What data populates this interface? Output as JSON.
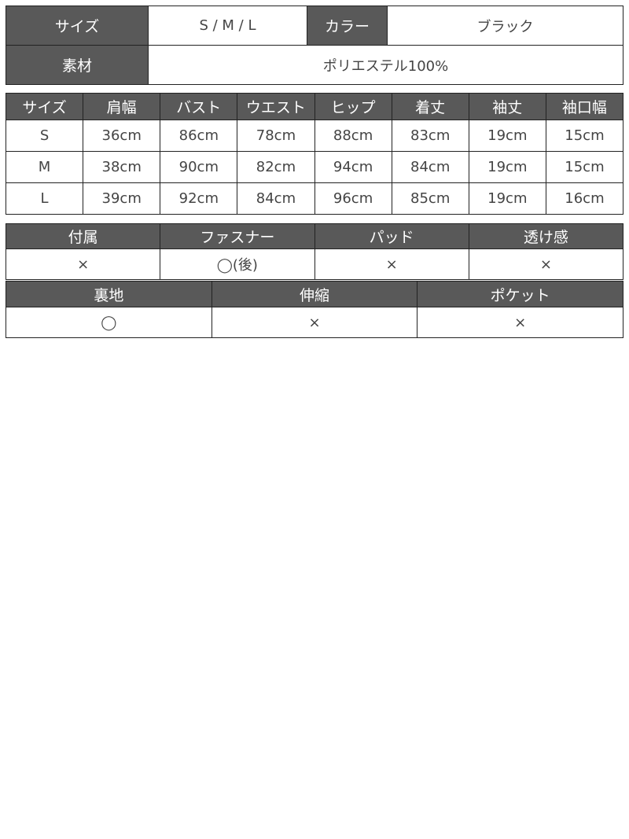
{
  "basic": {
    "size_label": "サイズ",
    "size_value": "S / M / L",
    "color_label": "カラー",
    "color_value": "ブラック",
    "material_label": "素材",
    "material_value": "ポリエステル100%"
  },
  "size_table": {
    "headers": [
      "サイズ",
      "肩幅",
      "バスト",
      "ウエスト",
      "ヒップ",
      "着丈",
      "袖丈",
      "袖口幅"
    ],
    "rows": [
      [
        "S",
        "36cm",
        "86cm",
        "78cm",
        "88cm",
        "83cm",
        "19cm",
        "15cm"
      ],
      [
        "M",
        "38cm",
        "90cm",
        "82cm",
        "94cm",
        "84cm",
        "19cm",
        "15cm"
      ],
      [
        "L",
        "39cm",
        "92cm",
        "84cm",
        "96cm",
        "85cm",
        "19cm",
        "16cm"
      ]
    ]
  },
  "features1": {
    "headers": [
      "付属",
      "ファスナー",
      "パッド",
      "透け感"
    ],
    "values": [
      "×",
      "◯(後)",
      "×",
      "×"
    ]
  },
  "features2": {
    "headers": [
      "裏地",
      "伸縮",
      "ポケット"
    ],
    "values": [
      "◯",
      "×",
      "×"
    ]
  }
}
